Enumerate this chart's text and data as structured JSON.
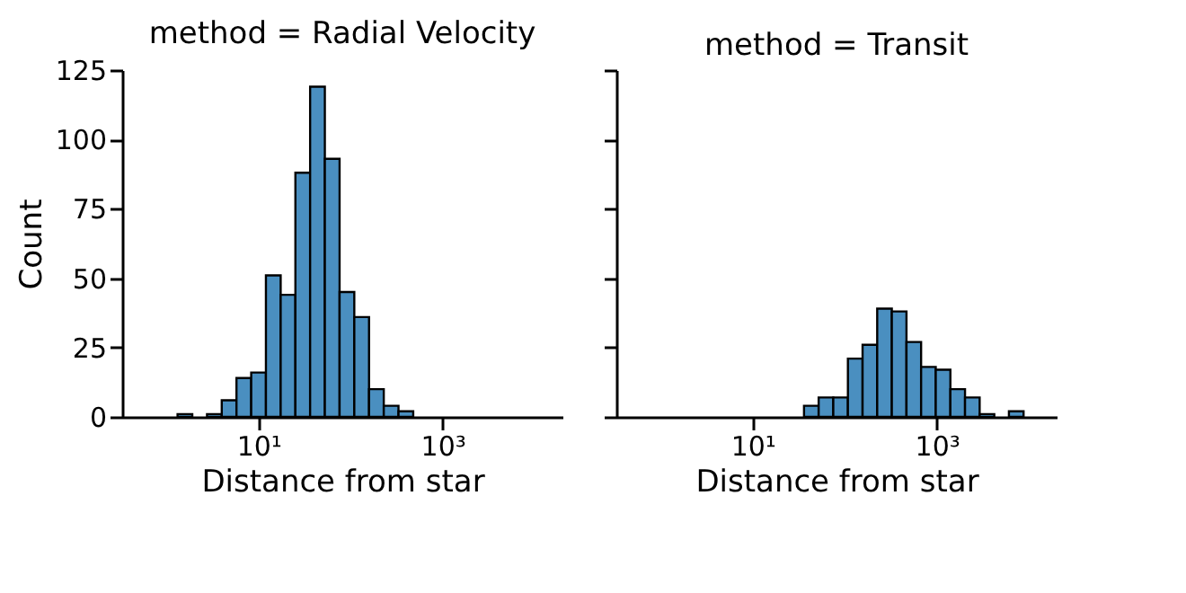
{
  "chart_data": [
    {
      "type": "histogram",
      "title": "method = Radial Velocity",
      "xlabel": "Distance from star",
      "ylabel": "Count",
      "log": "x",
      "color": "#4a8fc0",
      "bins": [
        1.318,
        1.905,
        2.754,
        3.981,
        5.754,
        8.318,
        12.02,
        17.38,
        25.12,
        36.31,
        52.48,
        75.86,
        109.6,
        158.5,
        229.1,
        331.1,
        478.6
      ],
      "values": [
        1,
        0,
        1,
        6,
        14,
        16,
        51,
        44,
        88,
        119,
        93,
        45,
        36,
        10,
        4,
        2
      ],
      "xlim": [
        0.33,
        20000
      ],
      "xticks": [
        {
          "value": 10,
          "label": "10¹"
        },
        {
          "value": 1000,
          "label": "10³"
        }
      ],
      "ylim": [
        0,
        125
      ],
      "yticks": [
        0,
        25,
        50,
        75,
        100,
        125
      ],
      "grid": false
    },
    {
      "type": "histogram",
      "title": "method = Transit",
      "xlabel": "Distance from star",
      "log": "x",
      "color": "#4a8fc0",
      "bins": [
        36.06,
        52.0,
        74.99,
        108.1,
        156.0,
        224.9,
        324.3,
        467.7,
        674.5,
        972.7,
        1403,
        2023,
        2917,
        4207,
        6067,
        8750
      ],
      "values": [
        4,
        7,
        7,
        21,
        26,
        39,
        38,
        27,
        18,
        17,
        10,
        7,
        1,
        0,
        2
      ],
      "xlim": [
        0.33,
        20000
      ],
      "xticks": [
        {
          "value": 10,
          "label": "10¹"
        },
        {
          "value": 1000,
          "label": "10³"
        }
      ],
      "ylim": [
        0,
        125
      ],
      "yticks": [
        0,
        25,
        50,
        75,
        100,
        125
      ],
      "tick_labels": "x",
      "grid": false
    }
  ]
}
